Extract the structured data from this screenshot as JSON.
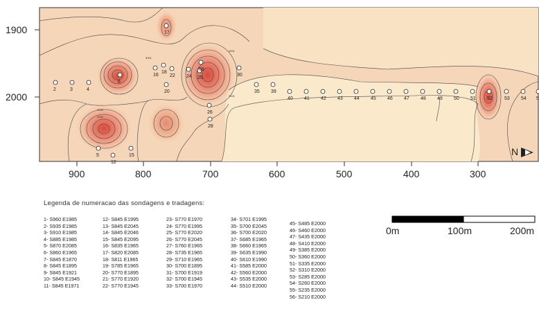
{
  "y_axis": {
    "ticks": [
      "1900",
      "2000"
    ]
  },
  "x_axis": {
    "ticks": [
      "900",
      "800",
      "700",
      "600",
      "500",
      "400",
      "300"
    ]
  },
  "north": {
    "label": "N"
  },
  "sondagem_labels": [
    "2",
    "3",
    "4",
    "5",
    "6",
    "12",
    "15",
    "16",
    "17",
    "18",
    "20",
    "22",
    "24",
    "25",
    "26",
    "28",
    "30",
    "35",
    "39",
    "40",
    "41",
    "42",
    "43",
    "44",
    "45",
    "46",
    "47",
    "48",
    "49",
    "50",
    "51",
    "52",
    "53",
    "54",
    "55",
    "56"
  ],
  "legend": {
    "title": "Legenda de numeracao das sondagens e tradagens:",
    "col1": [
      "1- S960 E1985",
      "2- S935 E1985",
      "3- S910 E1985",
      "4- S885 E1985",
      "5- S870 E2085",
      "6- S860 E1965",
      "7- S845 E1870",
      "8- S845 E1895",
      "9- S845 E1921",
      "10- S845 E1945",
      "11- S845 E1971"
    ],
    "col2": [
      "12- S845 E1995",
      "13- S845 E2045",
      "14- S845 E2046",
      "15- S845 E2095",
      "16- S835 E1965",
      "17- S820 E2085",
      "18- S811 E1965",
      "19- S785 E1965",
      "20- S770 E1895",
      "21- S770 E1920",
      "22- S770 E1945"
    ],
    "col3": [
      "23- S770 E1970",
      "24- S770 E1995",
      "25- S770 E2020",
      "26- S770 E2045",
      "27- S760 E1965",
      "28- S735 E1965",
      "29- S710 E1965",
      "30- S700 E1895",
      "31- S700 E1919",
      "32- S700 E1945",
      "33- S700 E1970"
    ],
    "col4": [
      "34- S701 E1995",
      "35- S700 E2045",
      "36- S700 E2020",
      "37- S685 E1965",
      "38- S660 E1965",
      "39- S635 E1990",
      "40- S610 E1990",
      "41- S585 E2000",
      "42- S560 E2000",
      "43- S535 E2000",
      "44- S510 E2000"
    ],
    "col5": [
      "45- S485 E2000",
      "46- S460 E2000",
      "47- S435 E2000",
      "48- S410 E2000",
      "49- S385 E2000",
      "50- S360 E2000",
      "51- S335 E2000",
      "52- S310 E2000",
      "53- S285 E2000",
      "54- S260 E2000",
      "55- S235 E2000",
      "56- S210 E2000"
    ]
  },
  "scale": {
    "labels": [
      "0m",
      "100m",
      "200m"
    ]
  },
  "colors": {
    "background": "#fdf0d8",
    "hot": "#e06a5a",
    "contour": "#444444"
  }
}
